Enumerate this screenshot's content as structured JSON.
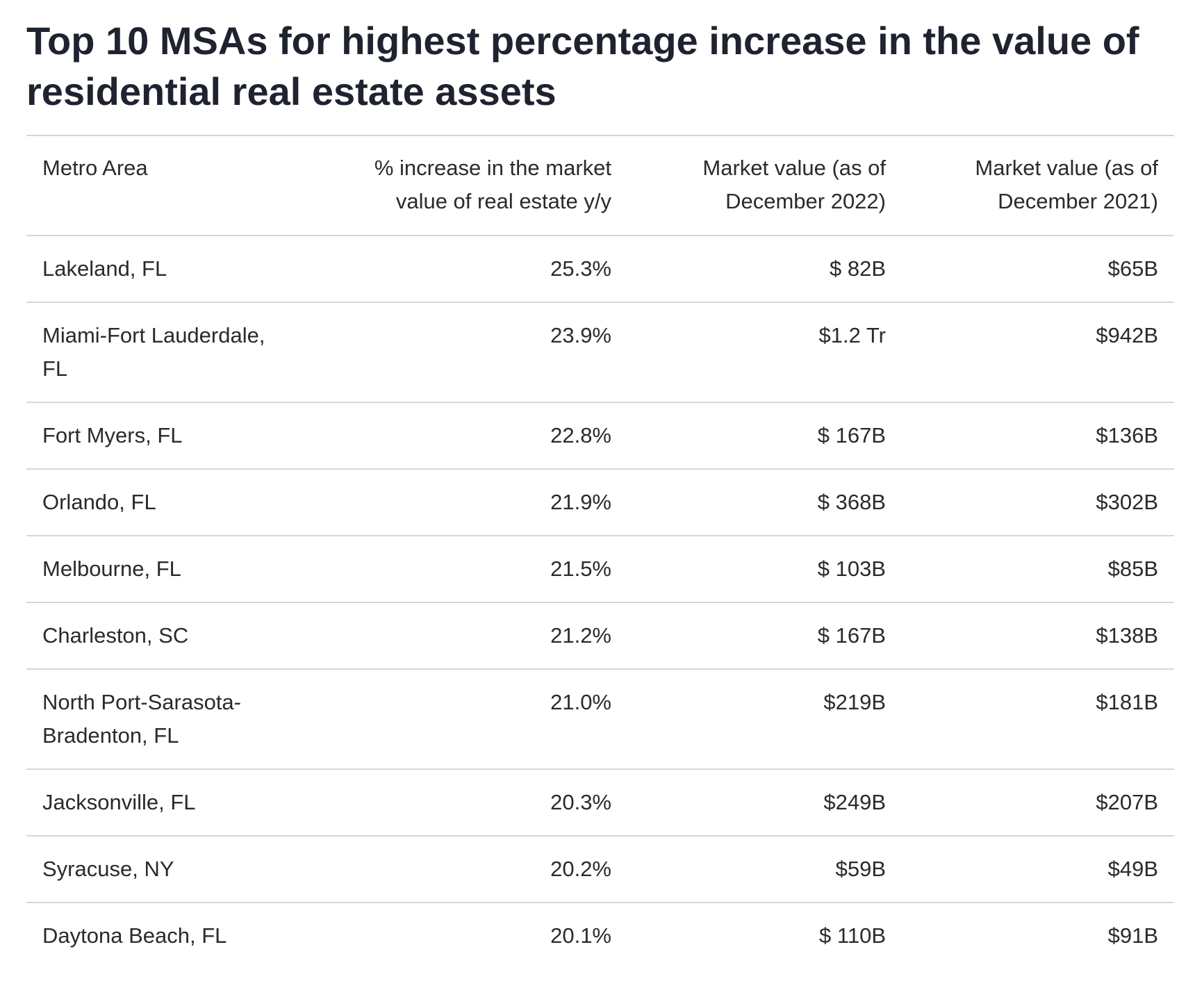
{
  "header": {
    "title": "Top 10 MSAs for highest percentage increase in the value of residential real estate assets"
  },
  "table": {
    "columns": [
      "Metro Area",
      "% increase in the market value of real estate y/y",
      "Market value (as of December 2022)",
      "Market value (as of December 2021)"
    ],
    "rows": [
      [
        "Lakeland, FL",
        "25.3%",
        "$ 82B",
        "$65B"
      ],
      [
        "Miami-Fort Lauderdale, FL",
        "23.9%",
        "$1.2 Tr",
        "$942B"
      ],
      [
        "Fort Myers, FL",
        "22.8%",
        "$ 167B",
        "$136B"
      ],
      [
        "Orlando, FL",
        "21.9%",
        "$ 368B",
        "$302B"
      ],
      [
        "Melbourne, FL",
        "21.5%",
        "$ 103B",
        "$85B"
      ],
      [
        "Charleston, SC",
        "21.2%",
        "$ 167B",
        "$138B"
      ],
      [
        "North Port-Sarasota-Bradenton, FL",
        "21.0%",
        "$219B",
        "$181B"
      ],
      [
        "Jacksonville, FL",
        "20.3%",
        "$249B",
        "$207B"
      ],
      [
        "Syracuse, NY",
        "20.2%",
        "$59B",
        "$49B"
      ],
      [
        "Daytona Beach, FL",
        "20.1%",
        "$ 110B",
        "$91B"
      ]
    ]
  }
}
